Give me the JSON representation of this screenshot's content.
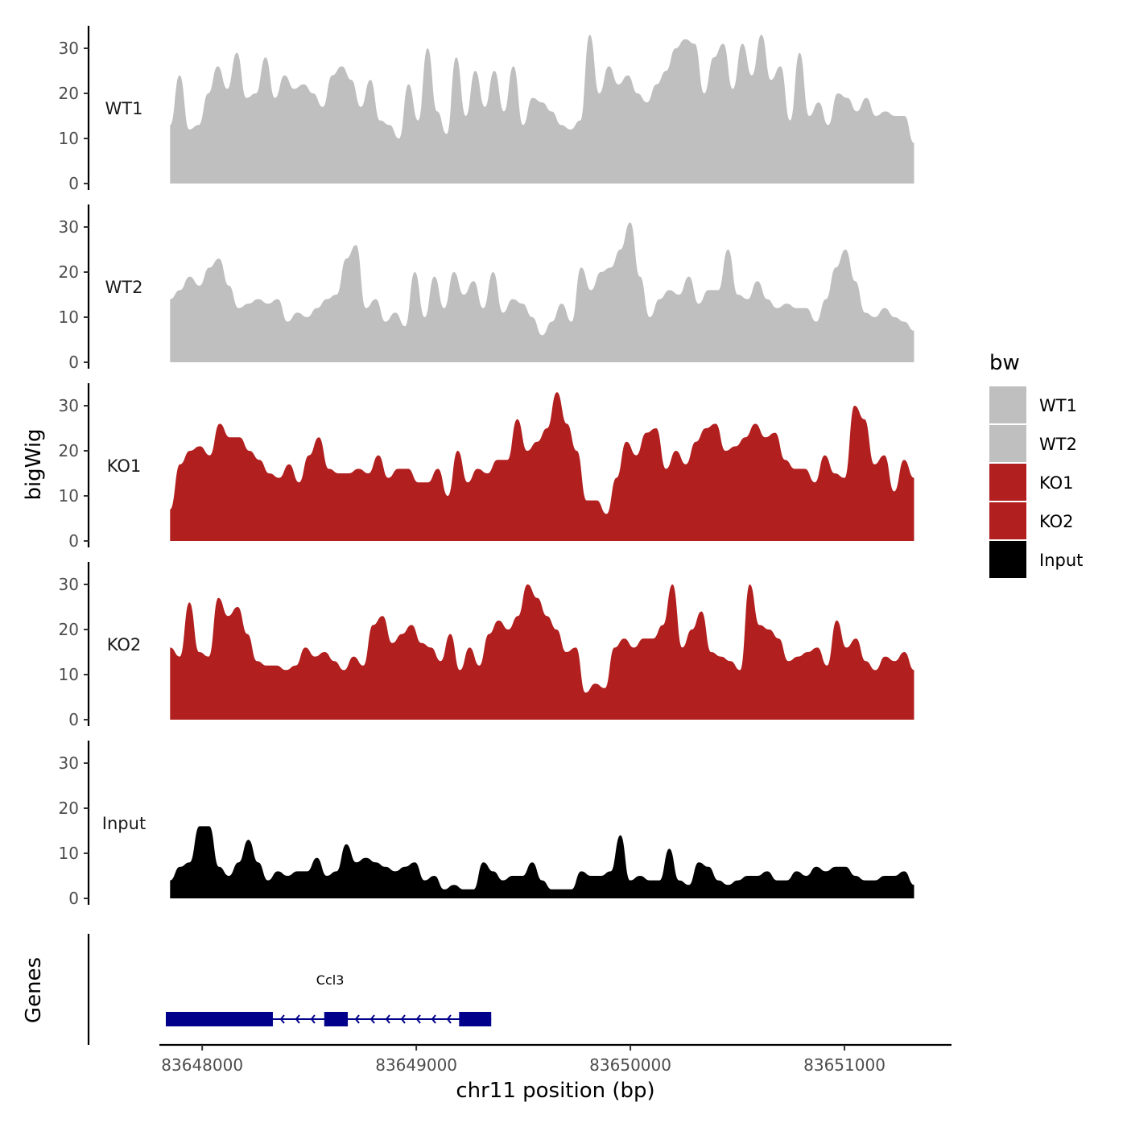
{
  "chart_data": {
    "type": "area",
    "ylabel": "bigWig",
    "xlabel": "chr11 position (bp)",
    "genes_label": "Genes",
    "ylim": [
      0,
      35
    ],
    "yticks": [
      0,
      10,
      20,
      30
    ],
    "xlim": [
      83647800,
      83651500
    ],
    "xticks": [
      83648000,
      83649000,
      83650000,
      83651000
    ],
    "xtick_labels": [
      "83648000",
      "83649000",
      "83650000",
      "83651000"
    ],
    "x_start": 83647850,
    "x_end": 83651325,
    "legend": {
      "title": "bw",
      "position": "right",
      "entries": [
        {
          "label": "WT1",
          "color": "#bfbfbf"
        },
        {
          "label": "WT2",
          "color": "#bfbfbf"
        },
        {
          "label": "KO1",
          "color": "#b21f1f"
        },
        {
          "label": "KO2",
          "color": "#b21f1f"
        },
        {
          "label": "Input",
          "color": "#000000"
        }
      ]
    },
    "series": [
      {
        "name": "WT1",
        "color": "#bfbfbf",
        "values": [
          13,
          24,
          12,
          13,
          20,
          26,
          21,
          29,
          19,
          20,
          28,
          19,
          24,
          21,
          22,
          20,
          17,
          24,
          26,
          23,
          17,
          23,
          14,
          13,
          10,
          22,
          14,
          30,
          16,
          11,
          28,
          15,
          25,
          17,
          25,
          16,
          26,
          13,
          19,
          18,
          16,
          13,
          12,
          14,
          33,
          20,
          26,
          22,
          24,
          20,
          18,
          22,
          25,
          30,
          32,
          31,
          20,
          28,
          31,
          21,
          31,
          24,
          33,
          23,
          26,
          14,
          29,
          15,
          18,
          13,
          20,
          19,
          16,
          19,
          15,
          16,
          15,
          15,
          9
        ]
      },
      {
        "name": "WT2",
        "color": "#bfbfbf",
        "values": [
          14,
          16,
          19,
          17,
          21,
          23,
          17,
          12,
          13,
          14,
          13,
          14,
          9,
          11,
          10,
          12,
          14,
          15,
          23,
          26,
          12,
          14,
          9,
          11,
          8,
          20,
          10,
          19,
          12,
          20,
          15,
          18,
          12,
          20,
          11,
          14,
          13,
          10,
          6,
          9,
          13,
          9,
          21,
          16,
          20,
          21,
          25,
          31,
          19,
          10,
          14,
          16,
          15,
          19,
          13,
          16,
          16,
          25,
          15,
          14,
          18,
          14,
          12,
          13,
          12,
          12,
          9,
          14,
          21,
          25,
          18,
          11,
          10,
          12,
          10,
          9,
          7
        ]
      },
      {
        "name": "KO1",
        "color": "#b21f1f",
        "values": [
          7,
          17,
          20,
          21,
          19,
          26,
          23,
          23,
          20,
          18,
          15,
          14,
          17,
          13,
          19,
          23,
          16,
          15,
          15,
          16,
          15,
          19,
          14,
          16,
          16,
          13,
          13,
          16,
          10,
          20,
          13,
          16,
          15,
          18,
          18,
          27,
          20,
          22,
          25,
          33,
          26,
          20,
          9,
          9,
          6,
          14,
          22,
          19,
          24,
          25,
          16,
          20,
          17,
          22,
          25,
          26,
          20,
          21,
          23,
          26,
          23,
          24,
          18,
          16,
          16,
          13,
          19,
          15,
          14,
          30,
          27,
          17,
          19,
          11,
          18,
          14
        ]
      },
      {
        "name": "KO2",
        "color": "#b21f1f",
        "values": [
          16,
          14,
          26,
          15,
          14,
          27,
          23,
          25,
          19,
          13,
          12,
          12,
          11,
          12,
          16,
          14,
          15,
          13,
          11,
          14,
          12,
          21,
          23,
          17,
          19,
          21,
          17,
          16,
          13,
          19,
          11,
          16,
          12,
          19,
          22,
          20,
          23,
          30,
          27,
          23,
          20,
          15,
          16,
          6,
          8,
          7,
          16,
          18,
          16,
          18,
          18,
          21,
          30,
          16,
          20,
          24,
          15,
          14,
          13,
          11,
          30,
          21,
          20,
          18,
          13,
          14,
          15,
          16,
          12,
          22,
          16,
          18,
          13,
          11,
          14,
          13,
          15,
          11
        ]
      },
      {
        "name": "Input",
        "color": "#000000",
        "values": [
          4,
          7,
          8,
          16,
          16,
          7,
          5,
          8,
          13,
          8,
          4,
          6,
          5,
          6,
          6,
          9,
          5,
          6,
          12,
          8,
          9,
          8,
          7,
          6,
          7,
          8,
          4,
          5,
          2,
          3,
          2,
          2,
          8,
          6,
          4,
          5,
          5,
          8,
          4,
          2,
          2,
          2,
          6,
          5,
          5,
          6,
          14,
          4,
          5,
          4,
          4,
          11,
          4,
          3,
          8,
          7,
          4,
          3,
          4,
          5,
          5,
          6,
          4,
          4,
          6,
          5,
          7,
          6,
          7,
          7,
          5,
          4,
          4,
          5,
          5,
          6,
          3
        ]
      }
    ],
    "genes": [
      {
        "name": "Ccl3",
        "strand": "-",
        "start": 83647830,
        "end": 83649350,
        "exons": [
          [
            83647830,
            83648330
          ],
          [
            83648570,
            83648680
          ],
          [
            83649200,
            83649350
          ]
        ]
      }
    ]
  }
}
